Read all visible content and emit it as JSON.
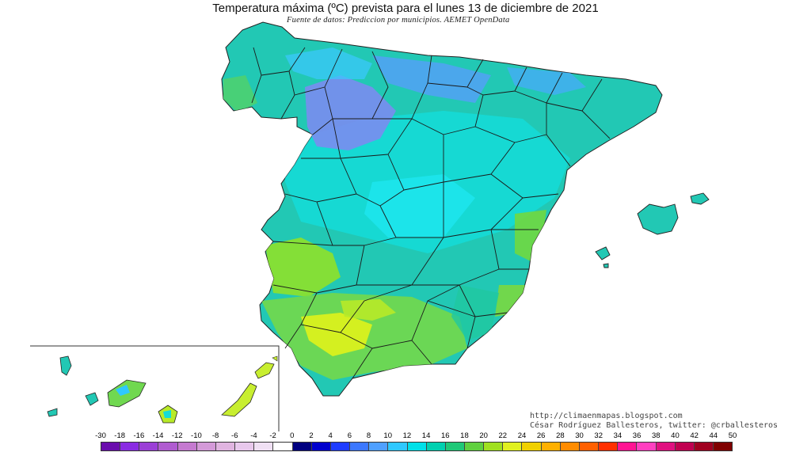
{
  "header": {
    "title": "Temperatura máxima (ºC) prevista para el lunes 13 de diciembre de 2021",
    "subtitle": "Fuente de datos: Prediccion por municipios. AEMET OpenData"
  },
  "credits": {
    "blog": "http://climaenmapas.blogspot.com",
    "author": "César Rodríguez Ballesteros, twitter: @crballesteros"
  },
  "legend": {
    "ticks": [
      "-30",
      "-18",
      "-16",
      "-14",
      "-12",
      "-10",
      "-8",
      "-6",
      "-4",
      "-2",
      "0",
      "2",
      "4",
      "6",
      "8",
      "10",
      "12",
      "14",
      "16",
      "18",
      "20",
      "22",
      "24",
      "26",
      "28",
      "30",
      "32",
      "34",
      "36",
      "38",
      "40",
      "42",
      "44",
      "50"
    ],
    "colors": [
      "#6a0dad",
      "#8a2be2",
      "#9b3fd6",
      "#b05cd0",
      "#c57ad0",
      "#d49ad8",
      "#e0b4e0",
      "#e8c8ec",
      "#f0e0f4",
      "#ffffff",
      "#000080",
      "#0000cd",
      "#1e3cff",
      "#3c78ff",
      "#4fa0ff",
      "#2fc8ff",
      "#00e0e8",
      "#00d0b0",
      "#20c878",
      "#60d040",
      "#a0e020",
      "#e0f020",
      "#f0d000",
      "#ffb000",
      "#ff8c00",
      "#ff6000",
      "#ff3000",
      "#ff1493",
      "#ff40c0",
      "#e01080",
      "#c00050",
      "#a00020",
      "#800000"
    ]
  },
  "map": {
    "regions": [
      "peninsula",
      "baleares",
      "canarias"
    ],
    "colors": {
      "cyan": "#00e0e8",
      "teal": "#20c8b0",
      "lightblue": "#2fc8ff",
      "blue": "#6f8cff",
      "green": "#60d040",
      "yellowgreen": "#c8ee30"
    }
  }
}
